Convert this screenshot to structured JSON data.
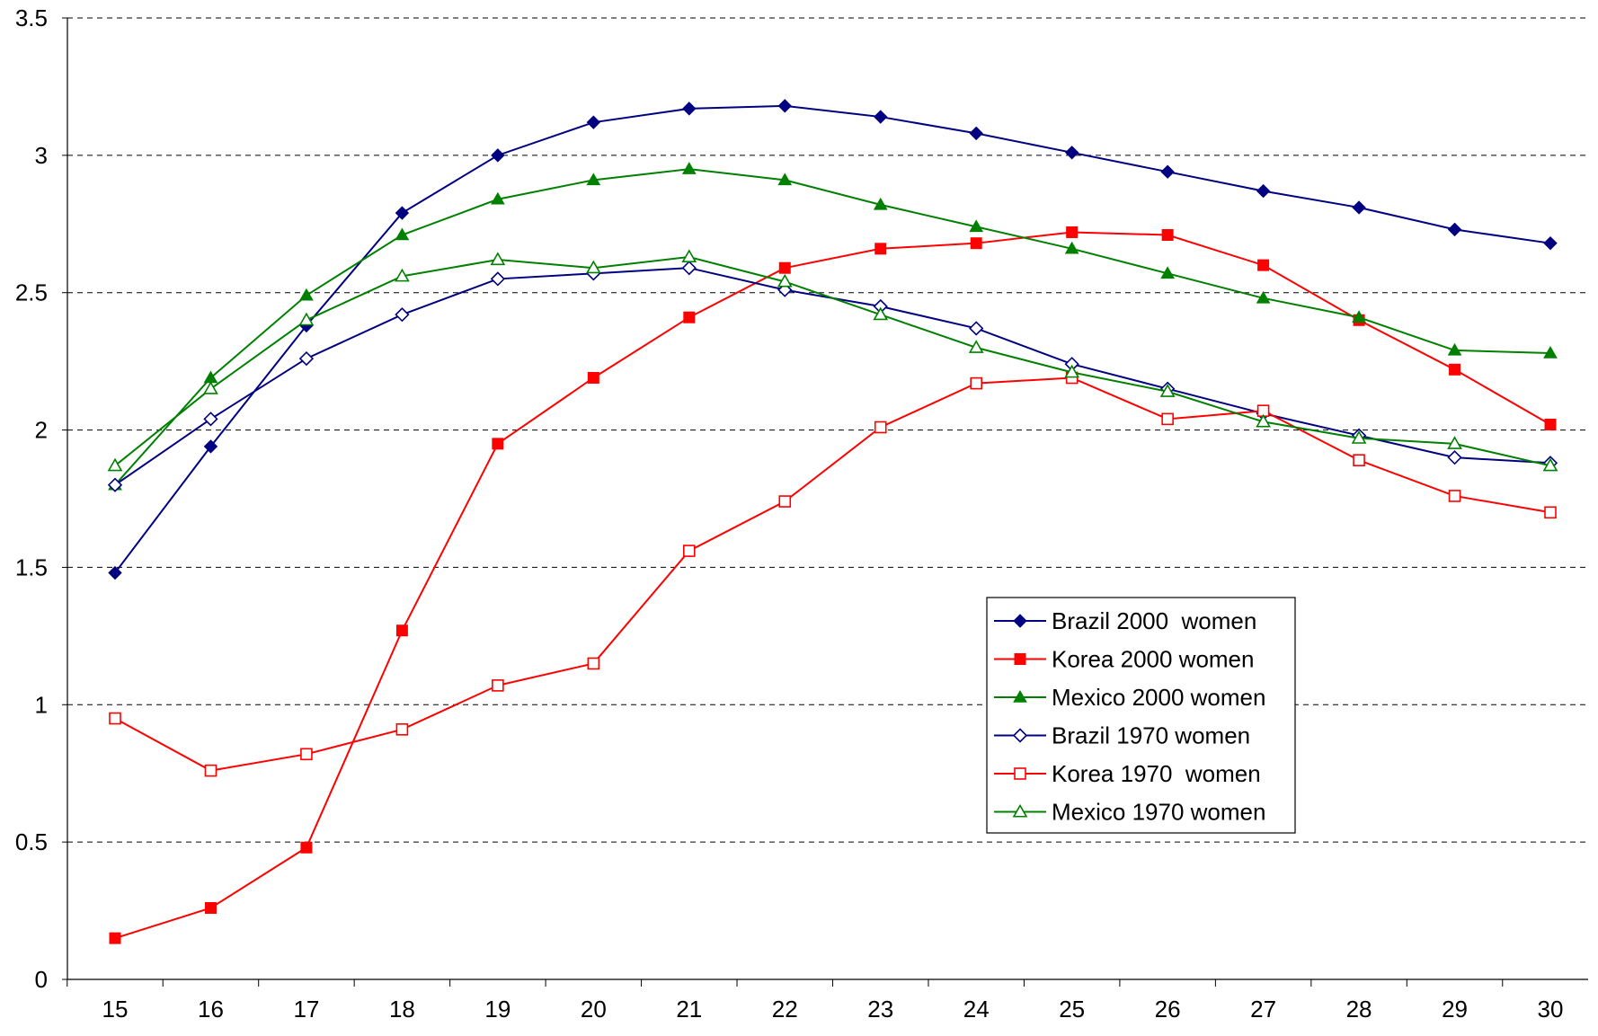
{
  "chart_data": {
    "type": "line",
    "title": "",
    "xlabel": "",
    "ylabel": "",
    "x": [
      15,
      16,
      17,
      18,
      19,
      20,
      21,
      22,
      23,
      24,
      25,
      26,
      27,
      28,
      29,
      30
    ],
    "xtick_labels": [
      "15",
      "16",
      "17",
      "18",
      "19",
      "20",
      "21",
      "22",
      "23",
      "24",
      "25",
      "26",
      "27",
      "28",
      "29",
      "30"
    ],
    "ylim": [
      0,
      3.5
    ],
    "yticks": [
      0,
      0.5,
      1,
      1.5,
      2,
      2.5,
      3,
      3.5
    ],
    "ytick_labels": [
      "0",
      "0.5",
      "1",
      "1.5",
      "2",
      "2.5",
      "3",
      "3.5"
    ],
    "grid": "horizontal dashed",
    "legend_position": "lower-right inside plot",
    "series": [
      {
        "name": "Brazil 2000  women",
        "color": "#000080",
        "marker": "diamond-filled",
        "values": [
          1.48,
          1.94,
          2.38,
          2.79,
          3.0,
          3.12,
          3.17,
          3.18,
          3.14,
          3.08,
          3.01,
          2.94,
          2.87,
          2.81,
          2.73,
          2.68
        ]
      },
      {
        "name": "Korea 2000 women",
        "color": "#ff0000",
        "marker": "square-filled",
        "values": [
          0.15,
          0.26,
          0.48,
          1.27,
          1.95,
          2.19,
          2.41,
          2.59,
          2.66,
          2.68,
          2.72,
          2.71,
          2.6,
          2.4,
          2.22,
          2.02
        ]
      },
      {
        "name": "Mexico 2000 women",
        "color": "#008000",
        "marker": "triangle-filled",
        "values": [
          1.8,
          2.19,
          2.49,
          2.71,
          2.84,
          2.91,
          2.95,
          2.91,
          2.82,
          2.74,
          2.66,
          2.57,
          2.48,
          2.41,
          2.29,
          2.28
        ]
      },
      {
        "name": "Brazil 1970 women",
        "color": "#000080",
        "marker": "diamond-open",
        "values": [
          1.8,
          2.04,
          2.26,
          2.42,
          2.55,
          2.57,
          2.59,
          2.51,
          2.45,
          2.37,
          2.24,
          2.15,
          2.06,
          1.98,
          1.9,
          1.88
        ]
      },
      {
        "name": "Korea 1970  women",
        "color": "#ff0000",
        "marker": "square-open",
        "values": [
          0.95,
          0.76,
          0.82,
          0.91,
          1.07,
          1.15,
          1.56,
          1.74,
          2.01,
          2.17,
          2.19,
          2.04,
          2.07,
          1.89,
          1.76,
          1.7
        ]
      },
      {
        "name": "Mexico 1970 women",
        "color": "#008000",
        "marker": "triangle-open",
        "values": [
          1.87,
          2.15,
          2.4,
          2.56,
          2.62,
          2.59,
          2.63,
          2.54,
          2.42,
          2.3,
          2.21,
          2.14,
          2.03,
          1.97,
          1.95,
          1.87
        ]
      }
    ]
  }
}
